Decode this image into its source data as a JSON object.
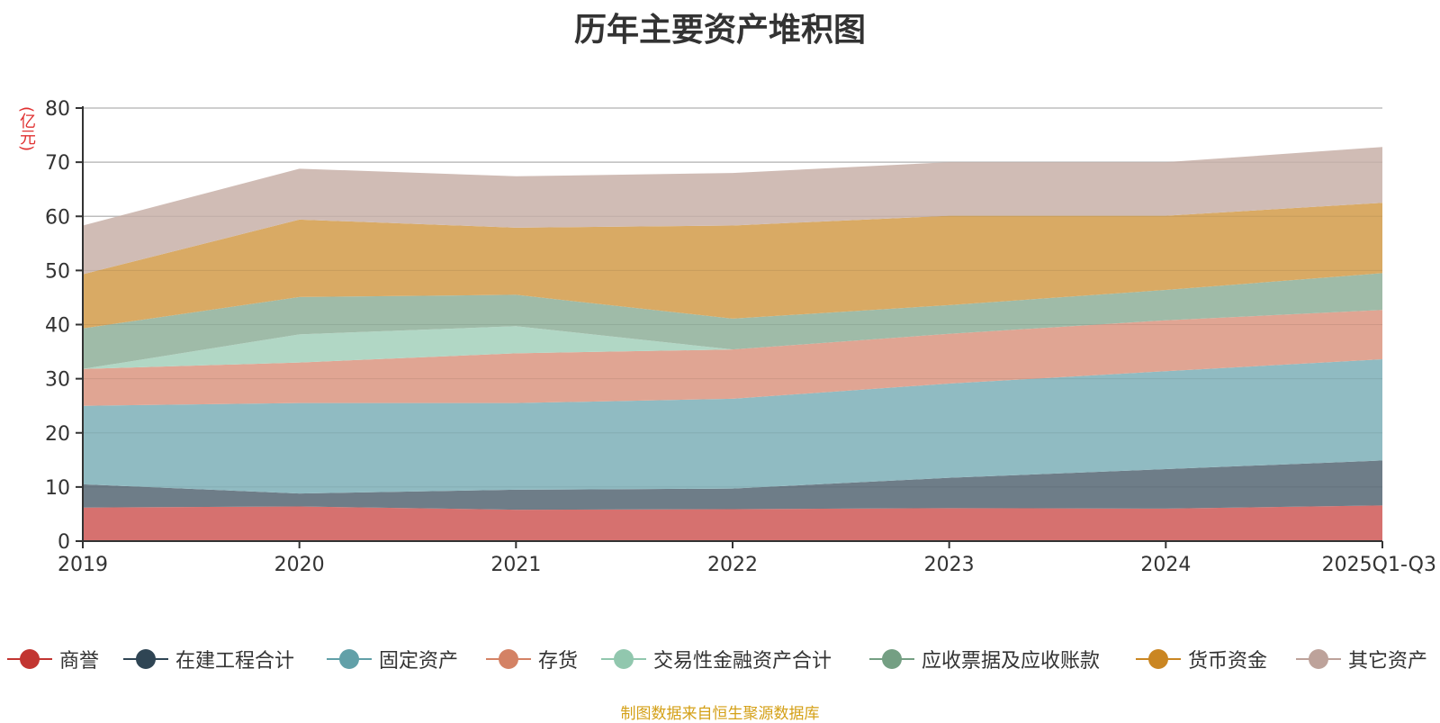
{
  "chart_data": {
    "type": "area",
    "stacked": true,
    "title": "历年主要资产堆积图",
    "ylabel": "亿元",
    "unit_label": "(亿元)",
    "categories": [
      "2019",
      "2020",
      "2021",
      "2022",
      "2023",
      "2024",
      "2025Q1-Q3"
    ],
    "ylim": [
      0,
      80
    ],
    "yticks": [
      0,
      10,
      20,
      30,
      40,
      50,
      60,
      70,
      80
    ],
    "grid": true,
    "legend_position": "bottom",
    "series": [
      {
        "name": "商誉",
        "color": "#c23531",
        "fill": "#d6716f",
        "values": [
          6.2,
          6.4,
          5.8,
          5.9,
          6.1,
          6.0,
          6.6
        ]
      },
      {
        "name": "在建工程合计",
        "color": "#2f4554",
        "fill": "#6e7d88",
        "values": [
          4.3,
          2.4,
          3.7,
          3.8,
          5.6,
          7.3,
          8.3
        ]
      },
      {
        "name": "固定资产",
        "color": "#61a0a8",
        "fill": "#90bbc2",
        "values": [
          14.5,
          16.7,
          16.0,
          16.6,
          17.4,
          18.1,
          18.7
        ]
      },
      {
        "name": "存货",
        "color": "#d48265",
        "fill": "#e0a593",
        "values": [
          6.8,
          7.5,
          9.2,
          9.1,
          9.2,
          9.4,
          9.1
        ]
      },
      {
        "name": "交易性金融资产合计",
        "color": "#91c7ae",
        "fill": "#b1d7c5",
        "values": [
          0.0,
          5.2,
          5.0,
          0.0,
          0.0,
          0.0,
          0.0
        ]
      },
      {
        "name": "应收票据及应收账款",
        "color": "#749f83",
        "fill": "#9fbba8",
        "values": [
          7.5,
          6.9,
          5.8,
          5.7,
          5.3,
          5.6,
          6.8
        ]
      },
      {
        "name": "货币资金",
        "color": "#ca8622",
        "fill": "#d9aa64",
        "values": [
          10.0,
          14.3,
          12.4,
          17.2,
          16.5,
          13.7,
          13.0
        ]
      },
      {
        "name": "其它资产",
        "color": "#bda29a",
        "fill": "#d0bcb5",
        "values": [
          9.0,
          9.4,
          9.5,
          9.7,
          9.9,
          9.9,
          10.3
        ]
      }
    ],
    "source": "制图数据来自恒生聚源数据库"
  }
}
